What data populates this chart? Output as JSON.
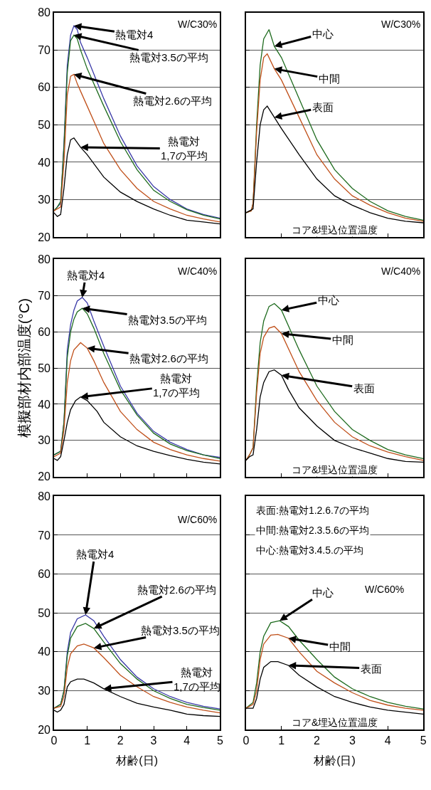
{
  "chart_data": [
    {
      "type": "line",
      "xlim": [
        0,
        5
      ],
      "xticks": [
        0,
        1,
        2,
        3,
        4,
        5
      ],
      "ylim": [
        20,
        80
      ],
      "yticks": [
        20,
        30,
        40,
        50,
        60,
        70,
        80
      ],
      "grid": "y",
      "tick_labels": "y",
      "series": [
        {
          "color": "#3a3aa8",
          "x": [
            0,
            0.1,
            0.2,
            0.3,
            0.4,
            0.5,
            0.6,
            0.7,
            0.8,
            1.0,
            1.5,
            2.0,
            2.5,
            3.0,
            3.5,
            4.0,
            4.5,
            5
          ],
          "values": [
            27,
            28,
            29,
            45,
            66,
            74,
            76.5,
            75.5,
            72,
            68,
            57,
            47,
            39,
            33.5,
            30,
            27.5,
            26,
            25
          ]
        },
        {
          "color": "#1e6b1e",
          "x": [
            0,
            0.1,
            0.2,
            0.3,
            0.4,
            0.5,
            0.6,
            0.7,
            0.8,
            1.0,
            1.5,
            2.0,
            2.5,
            3.0,
            3.5,
            4.0,
            4.5,
            5
          ],
          "values": [
            27,
            28,
            29.5,
            44,
            64,
            72.5,
            74,
            73,
            70,
            65,
            55,
            45.5,
            38,
            32.5,
            29.5,
            27.3,
            25.8,
            24.8
          ]
        },
        {
          "color": "#c0501a",
          "x": [
            0,
            0.2,
            0.3,
            0.4,
            0.5,
            0.6,
            0.7,
            0.8,
            1.0,
            1.5,
            2.0,
            2.5,
            3.0,
            3.5,
            4.0,
            4.5,
            5
          ],
          "values": [
            27,
            28,
            40,
            58,
            63,
            63.5,
            61,
            59,
            55,
            45,
            38,
            33,
            29.5,
            27.5,
            25.8,
            24.8,
            24
          ]
        },
        {
          "color": "#000000",
          "x": [
            0,
            0.1,
            0.2,
            0.3,
            0.4,
            0.5,
            0.6,
            0.8,
            1.0,
            1.5,
            2.0,
            2.5,
            3.0,
            3.5,
            4.0,
            4.5,
            5
          ],
          "values": [
            26.5,
            25.5,
            26,
            33,
            42,
            46,
            46.5,
            44,
            42,
            36,
            32,
            29.5,
            27.5,
            25.8,
            24.5,
            24,
            23.5
          ]
        }
      ],
      "annotations": [
        {
          "text": "熱電対4",
          "x": 0.6,
          "y": 76.5
        },
        {
          "text": "熱電対3.5の平均",
          "x": 0.6,
          "y": 74
        },
        {
          "text": "熱電対2.6の平均",
          "x": 0.6,
          "y": 63.5
        },
        {
          "text": "熱電対\n1,7の平均",
          "x": 0.8,
          "y": 44
        },
        "W/C30%"
      ]
    },
    {
      "type": "line",
      "xlim": [
        0,
        5
      ],
      "xticks": [
        0,
        1,
        2,
        3,
        4,
        5
      ],
      "ylim": [
        20,
        80
      ],
      "yticks": [
        20,
        30,
        40,
        50,
        60,
        70,
        80
      ],
      "grid": "y",
      "tick_labels": false,
      "series": [
        {
          "color": "#1e6b1e",
          "x": [
            0,
            0.15,
            0.2,
            0.3,
            0.4,
            0.5,
            0.65,
            0.8,
            1.0,
            1.5,
            2.0,
            2.5,
            3.0,
            3.5,
            4.0,
            4.5,
            5
          ],
          "values": [
            26.5,
            27,
            29,
            50,
            66,
            73,
            75.5,
            71,
            68,
            57,
            46,
            38,
            33,
            29.5,
            27,
            25.5,
            24.5
          ]
        },
        {
          "color": "#c0501a",
          "x": [
            0,
            0.15,
            0.2,
            0.3,
            0.4,
            0.5,
            0.6,
            0.8,
            1.0,
            1.5,
            2.0,
            2.5,
            3.0,
            3.5,
            4.0,
            4.5,
            5
          ],
          "values": [
            26.5,
            27,
            29,
            48,
            62,
            68,
            69,
            65,
            62,
            52,
            42,
            35.5,
            31,
            28.5,
            26.5,
            25,
            24.2
          ]
        },
        {
          "color": "#000000",
          "x": [
            0,
            0.2,
            0.3,
            0.4,
            0.5,
            0.6,
            0.8,
            1.0,
            1.5,
            2.0,
            2.5,
            3.0,
            3.5,
            4.0,
            4.5,
            5
          ],
          "values": [
            26.5,
            27.5,
            40,
            50,
            54,
            55,
            52,
            49,
            42,
            35.5,
            31,
            28.5,
            26.5,
            25,
            24.2,
            23.8
          ]
        }
      ],
      "annotations": [
        {
          "text": "中心",
          "x": 0.8,
          "y": 71
        },
        {
          "text": "中間",
          "x": 0.8,
          "y": 65
        },
        {
          "text": "表面",
          "x": 0.8,
          "y": 52
        },
        "W/C30%",
        "コア&埋込位置温度"
      ]
    },
    {
      "type": "line",
      "xlim": [
        0,
        5
      ],
      "xticks": [
        0,
        1,
        2,
        3,
        4,
        5
      ],
      "ylim": [
        20,
        80
      ],
      "yticks": [
        20,
        30,
        40,
        50,
        60,
        70,
        80
      ],
      "grid": "y",
      "tick_labels": "y",
      "ylabel": "模擬部材内部温度(°C)",
      "series": [
        {
          "color": "#3a3aa8",
          "x": [
            0,
            0.2,
            0.3,
            0.4,
            0.5,
            0.6,
            0.7,
            0.85,
            1.0,
            1.2,
            1.5,
            2.0,
            2.5,
            3.0,
            3.5,
            4.0,
            4.5,
            5
          ],
          "values": [
            26,
            27,
            35,
            55,
            62,
            66,
            68.5,
            69.5,
            68,
            63,
            56,
            45,
            37.5,
            32.5,
            29.5,
            27.5,
            26,
            25.3
          ]
        },
        {
          "color": "#1e6b1e",
          "x": [
            0,
            0.2,
            0.3,
            0.4,
            0.5,
            0.6,
            0.7,
            0.85,
            1.0,
            1.2,
            1.5,
            2.0,
            2.5,
            3.0,
            3.5,
            4.0,
            4.5,
            5
          ],
          "values": [
            26,
            27,
            35,
            53,
            60,
            63.5,
            65.5,
            66.5,
            65,
            61,
            54,
            44,
            37,
            32,
            29,
            27.2,
            26,
            25
          ]
        },
        {
          "color": "#c0501a",
          "x": [
            0,
            0.2,
            0.3,
            0.4,
            0.5,
            0.6,
            0.8,
            1.0,
            1.2,
            1.5,
            2.0,
            2.5,
            3.0,
            3.5,
            4.0,
            4.5,
            5
          ],
          "values": [
            25.5,
            26.5,
            33,
            46,
            52,
            55,
            57,
            55.5,
            52,
            46,
            38,
            33,
            29.5,
            27.5,
            26,
            25,
            24.3
          ]
        },
        {
          "color": "#000000",
          "x": [
            0,
            0.1,
            0.2,
            0.3,
            0.4,
            0.5,
            0.65,
            0.8,
            1.0,
            1.3,
            1.5,
            2.0,
            2.5,
            3.0,
            3.5,
            4.0,
            4.5,
            5
          ],
          "values": [
            25,
            24.5,
            25.5,
            30,
            35,
            38.5,
            41,
            42,
            41,
            38,
            35,
            31,
            28.5,
            27,
            25.8,
            24.8,
            24,
            23.5
          ]
        }
      ],
      "annotations": [
        {
          "text": "熱電対4",
          "x": 0.85,
          "y": 69.5
        },
        {
          "text": "熱電対3.5の平均",
          "x": 0.85,
          "y": 66.5
        },
        {
          "text": "熱電対2.6の平均",
          "x": 1.0,
          "y": 55.5
        },
        {
          "text": "熱電対\n1,7の平均",
          "x": 0.8,
          "y": 42
        },
        "W/C40%"
      ]
    },
    {
      "type": "line",
      "xlim": [
        0,
        5
      ],
      "xticks": [
        0,
        1,
        2,
        3,
        4,
        5
      ],
      "ylim": [
        20,
        80
      ],
      "yticks": [
        20,
        30,
        40,
        50,
        60,
        70,
        80
      ],
      "grid": "y",
      "tick_labels": false,
      "series": [
        {
          "color": "#1e6b1e",
          "x": [
            0,
            0.1,
            0.2,
            0.3,
            0.4,
            0.5,
            0.65,
            0.8,
            1.0,
            1.5,
            2.0,
            2.5,
            3.0,
            3.5,
            4.0,
            4.5,
            5
          ],
          "values": [
            24.5,
            26,
            28,
            45,
            57,
            63,
            67,
            67.8,
            66,
            55,
            45,
            38,
            33,
            30,
            27.5,
            26,
            25
          ]
        },
        {
          "color": "#c0501a",
          "x": [
            0,
            0.1,
            0.2,
            0.3,
            0.4,
            0.5,
            0.65,
            0.8,
            1.0,
            1.5,
            2.0,
            2.5,
            3.0,
            3.5,
            4.0,
            4.5,
            5
          ],
          "values": [
            24.5,
            26,
            28,
            43,
            54,
            58.5,
            61,
            61.5,
            59.5,
            49,
            41,
            35,
            31,
            28.5,
            26.8,
            25.5,
            24.5
          ]
        },
        {
          "color": "#000000",
          "x": [
            0,
            0.1,
            0.2,
            0.3,
            0.4,
            0.5,
            0.65,
            0.8,
            1.0,
            1.2,
            1.5,
            2.0,
            2.5,
            3.0,
            3.5,
            4.0,
            4.5,
            5
          ],
          "values": [
            24.5,
            25.5,
            26,
            33,
            42,
            46,
            49,
            49.5,
            48,
            44,
            39,
            34,
            30,
            28,
            26.5,
            25,
            24.2,
            24
          ]
        }
      ],
      "annotations": [
        {
          "text": "中心",
          "x": 1.0,
          "y": 66
        },
        {
          "text": "中間",
          "x": 1.0,
          "y": 59.5
        },
        {
          "text": "表面",
          "x": 1.0,
          "y": 48
        },
        "W/C40%",
        "コア&埋込位置温度"
      ]
    },
    {
      "type": "line",
      "xlim": [
        0,
        5
      ],
      "xticks": [
        0,
        1,
        2,
        3,
        4,
        5
      ],
      "ylim": [
        20,
        80
      ],
      "yticks": [
        20,
        30,
        40,
        50,
        60,
        70,
        80
      ],
      "grid": "y",
      "xlabel": "材齢(日)",
      "series": [
        {
          "color": "#3a3aa8",
          "x": [
            0,
            0.2,
            0.3,
            0.4,
            0.5,
            0.7,
            0.95,
            1.2,
            1.5,
            2.0,
            2.5,
            3.0,
            3.5,
            4.0,
            4.5,
            5
          ],
          "values": [
            25.5,
            26.5,
            30,
            40,
            45,
            48.5,
            49.5,
            48,
            44,
            38,
            33.5,
            30.5,
            28.5,
            27,
            26,
            25.3
          ]
        },
        {
          "color": "#1e6b1e",
          "x": [
            0,
            0.2,
            0.3,
            0.4,
            0.5,
            0.7,
            0.95,
            1.2,
            1.5,
            2.0,
            2.5,
            3.0,
            3.5,
            4.0,
            4.5,
            5
          ],
          "values": [
            25.5,
            26.5,
            30,
            39,
            43.5,
            46.5,
            47.3,
            46,
            42.5,
            37,
            33,
            30,
            28,
            26.5,
            25.7,
            25
          ]
        },
        {
          "color": "#c0501a",
          "x": [
            0,
            0.2,
            0.3,
            0.4,
            0.5,
            0.7,
            0.9,
            1.2,
            1.5,
            2.0,
            2.5,
            3.0,
            3.5,
            4.0,
            4.5,
            5
          ],
          "values": [
            25.5,
            26,
            28.5,
            36,
            39.5,
            41.5,
            42,
            41,
            38.5,
            34,
            31,
            28.5,
            27,
            25.8,
            25,
            24.3
          ]
        },
        {
          "color": "#000000",
          "x": [
            0,
            0.1,
            0.2,
            0.3,
            0.4,
            0.5,
            0.7,
            0.9,
            1.2,
            1.5,
            2.0,
            2.5,
            3.0,
            3.5,
            4.0,
            4.5,
            5
          ],
          "values": [
            25,
            24.5,
            25,
            26.5,
            31,
            32.3,
            33,
            33,
            32,
            30.5,
            28.5,
            26.8,
            25.8,
            25,
            24,
            23.6,
            23.4
          ]
        }
      ],
      "annotations": [
        {
          "text": "熱電対4",
          "x": 0.95,
          "y": 49.5
        },
        {
          "text": "熱電対2.6の平均",
          "x": 1.2,
          "y": 46
        },
        {
          "text": "熱電対3.5の平均",
          "x": 1.2,
          "y": 41
        },
        {
          "text": "熱電対\n1,7の平均",
          "x": 1.5,
          "y": 30.5
        },
        "W/C60%"
      ]
    },
    {
      "type": "line",
      "xlim": [
        0,
        5
      ],
      "xticks": [
        0,
        1,
        2,
        3,
        4,
        5
      ],
      "ylim": [
        20,
        80
      ],
      "yticks": [
        20,
        30,
        40,
        50,
        60,
        70,
        80
      ],
      "grid": "y",
      "tick_labels": "x",
      "xlabel": "材齢(日)",
      "series": [
        {
          "color": "#1e6b1e",
          "x": [
            0,
            0.2,
            0.3,
            0.4,
            0.5,
            0.7,
            0.95,
            1.2,
            1.5,
            2.0,
            2.5,
            3.0,
            3.5,
            4.0,
            4.5,
            5
          ],
          "values": [
            25.5,
            27,
            32,
            40,
            44,
            47.5,
            48,
            46.5,
            43,
            38,
            33.5,
            30.5,
            28.5,
            27,
            26,
            25.3
          ]
        },
        {
          "color": "#c0501a",
          "x": [
            0,
            0.2,
            0.3,
            0.4,
            0.5,
            0.7,
            0.9,
            1.2,
            1.5,
            2.0,
            2.5,
            3.0,
            3.5,
            4.0,
            4.5,
            5
          ],
          "values": [
            25.5,
            26.5,
            30,
            38,
            42,
            44.3,
            44.5,
            43.5,
            40,
            35,
            32,
            29.5,
            27.5,
            26.3,
            25.5,
            25
          ]
        },
        {
          "color": "#000000",
          "x": [
            0,
            0.2,
            0.3,
            0.4,
            0.5,
            0.7,
            0.9,
            1.2,
            1.5,
            2.0,
            2.5,
            3.0,
            3.5,
            4.0,
            4.5,
            5
          ],
          "values": [
            25.5,
            25.5,
            28,
            33,
            36,
            37.5,
            37.5,
            36.5,
            34,
            31,
            28.5,
            27,
            25.8,
            25,
            24.5,
            24
          ]
        }
      ],
      "annotations": [
        "表面:熱電対1.2.6.7の平均",
        "中間:熱電対2.3.5.6の平均",
        "中心:熱電対3.4.5.の平均",
        {
          "text": "中心",
          "x": 0.95,
          "y": 48
        },
        {
          "text": "中間",
          "x": 1.2,
          "y": 43.5
        },
        {
          "text": "表面",
          "x": 1.2,
          "y": 36.5
        },
        "W/C60%",
        "コア&埋込位置温度"
      ]
    }
  ]
}
